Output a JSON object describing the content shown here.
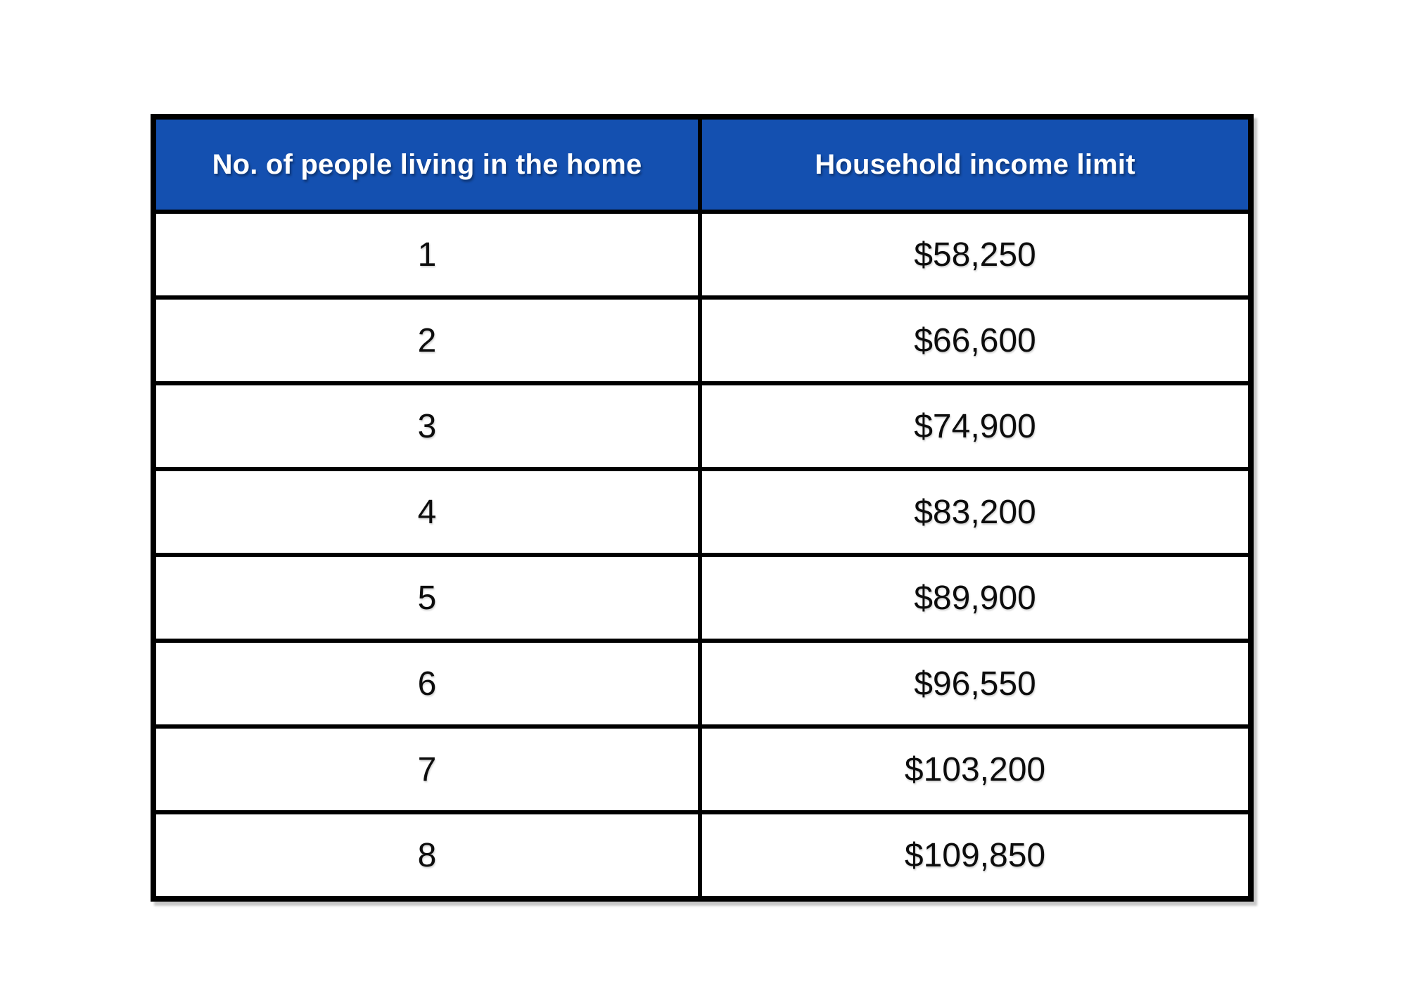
{
  "colors": {
    "header_bg": "#1450b0",
    "header_text": "#ffffff",
    "border": "#000000",
    "cell_text": "#0d0d0d",
    "page_bg": "#ffffff"
  },
  "table": {
    "columns": {
      "people": "No. of people living in the home",
      "income": "Household income limit"
    },
    "rows": [
      {
        "people": "1",
        "income": "$58,250"
      },
      {
        "people": "2",
        "income": "$66,600"
      },
      {
        "people": "3",
        "income": "$74,900"
      },
      {
        "people": "4",
        "income": "$83,200"
      },
      {
        "people": "5",
        "income": "$89,900"
      },
      {
        "people": "6",
        "income": "$96,550"
      },
      {
        "people": "7",
        "income": "$103,200"
      },
      {
        "people": "8",
        "income": "$109,850"
      }
    ]
  }
}
